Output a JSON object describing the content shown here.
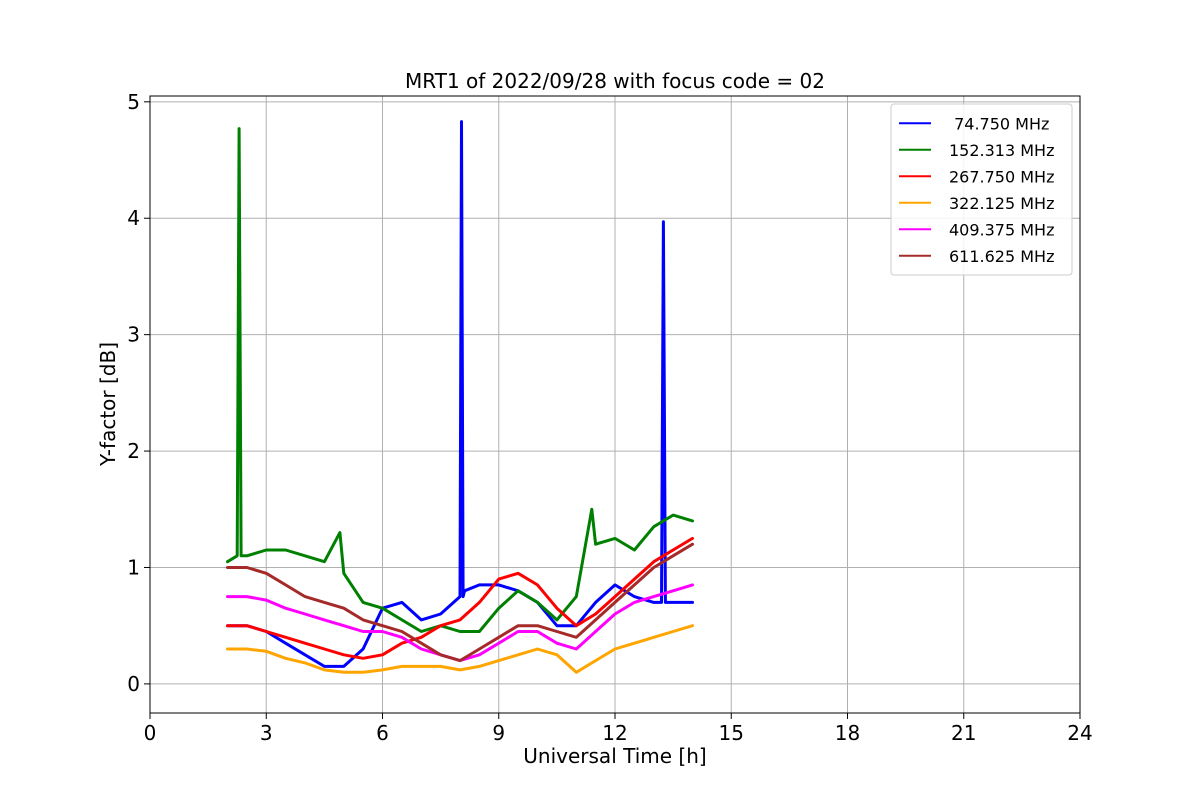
{
  "chart_data": {
    "type": "line",
    "title": "MRT1 of 2022/09/28 with focus code = 02",
    "xlabel": "Universal Time [h]",
    "ylabel": "Y-factor [dB]",
    "xlim": [
      0,
      24
    ],
    "ylim": [
      -0.25,
      5.05
    ],
    "xticks": [
      0,
      3,
      6,
      9,
      12,
      15,
      18,
      21,
      24
    ],
    "xtick_labels": [
      "0",
      "3",
      "6",
      "9",
      "12",
      "15",
      "18",
      "21",
      "24"
    ],
    "yticks": [
      0,
      1,
      2,
      3,
      4,
      5
    ],
    "ytick_labels": [
      "0",
      "1",
      "2",
      "3",
      "4",
      "5"
    ],
    "grid": true,
    "legend_position": "top-right",
    "series": [
      {
        "name": "74.750 MHz",
        "legend_label": " 74.750 MHz",
        "color": "#0000ff",
        "x": [
          2.0,
          2.5,
          3.0,
          3.5,
          4.0,
          4.5,
          5.0,
          5.5,
          6.0,
          6.5,
          7.0,
          7.5,
          8.0,
          8.04,
          8.08,
          8.12,
          8.5,
          9.0,
          9.5,
          10.0,
          10.5,
          11.0,
          11.5,
          12.0,
          12.5,
          13.0,
          13.2,
          13.25,
          13.3,
          13.5,
          14.0
        ],
        "y": [
          0.5,
          0.5,
          0.45,
          0.35,
          0.25,
          0.15,
          0.15,
          0.3,
          0.65,
          0.7,
          0.55,
          0.6,
          0.75,
          4.83,
          0.75,
          0.8,
          0.85,
          0.85,
          0.8,
          0.7,
          0.5,
          0.5,
          0.7,
          0.85,
          0.75,
          0.7,
          0.7,
          3.97,
          0.7,
          0.7,
          0.7
        ]
      },
      {
        "name": "152.313 MHz",
        "legend_label": "152.313 MHz",
        "color": "#008000",
        "x": [
          2.0,
          2.25,
          2.3,
          2.35,
          2.5,
          3.0,
          3.5,
          4.0,
          4.5,
          4.9,
          5.0,
          5.5,
          6.0,
          6.5,
          7.0,
          7.5,
          8.0,
          8.5,
          9.0,
          9.5,
          10.0,
          10.5,
          11.0,
          11.4,
          11.5,
          12.0,
          12.5,
          13.0,
          13.5,
          14.0
        ],
        "y": [
          1.05,
          1.1,
          4.77,
          1.1,
          1.1,
          1.15,
          1.15,
          1.1,
          1.05,
          1.3,
          0.95,
          0.7,
          0.65,
          0.55,
          0.45,
          0.5,
          0.45,
          0.45,
          0.65,
          0.8,
          0.7,
          0.55,
          0.75,
          1.5,
          1.2,
          1.25,
          1.15,
          1.35,
          1.45,
          1.4
        ]
      },
      {
        "name": "267.750 MHz",
        "legend_label": "267.750 MHz",
        "color": "#ff0000",
        "x": [
          2.0,
          2.5,
          3.0,
          3.5,
          4.0,
          4.5,
          5.0,
          5.5,
          6.0,
          6.5,
          7.0,
          7.5,
          8.0,
          8.5,
          9.0,
          9.5,
          10.0,
          10.5,
          11.0,
          11.5,
          12.0,
          12.5,
          13.0,
          13.5,
          14.0
        ],
        "y": [
          0.5,
          0.5,
          0.45,
          0.4,
          0.35,
          0.3,
          0.25,
          0.22,
          0.25,
          0.35,
          0.4,
          0.5,
          0.55,
          0.7,
          0.9,
          0.95,
          0.85,
          0.65,
          0.5,
          0.6,
          0.75,
          0.9,
          1.05,
          1.15,
          1.25
        ]
      },
      {
        "name": "322.125 MHz",
        "legend_label": "322.125 MHz",
        "color": "#ffa500",
        "x": [
          2.0,
          2.5,
          3.0,
          3.5,
          4.0,
          4.5,
          5.0,
          5.5,
          6.0,
          6.5,
          7.0,
          7.5,
          8.0,
          8.5,
          9.0,
          9.5,
          10.0,
          10.5,
          11.0,
          11.5,
          12.0,
          12.5,
          13.0,
          13.5,
          14.0
        ],
        "y": [
          0.3,
          0.3,
          0.28,
          0.22,
          0.18,
          0.12,
          0.1,
          0.1,
          0.12,
          0.15,
          0.15,
          0.15,
          0.12,
          0.15,
          0.2,
          0.25,
          0.3,
          0.25,
          0.1,
          0.2,
          0.3,
          0.35,
          0.4,
          0.45,
          0.5
        ]
      },
      {
        "name": "409.375 MHz",
        "legend_label": "409.375 MHz",
        "color": "#ff00ff",
        "x": [
          2.0,
          2.5,
          3.0,
          3.5,
          4.0,
          4.5,
          5.0,
          5.5,
          6.0,
          6.5,
          7.0,
          7.5,
          8.0,
          8.5,
          9.0,
          9.5,
          10.0,
          10.5,
          11.0,
          11.5,
          12.0,
          12.5,
          13.0,
          13.5,
          14.0
        ],
        "y": [
          0.75,
          0.75,
          0.72,
          0.65,
          0.6,
          0.55,
          0.5,
          0.45,
          0.45,
          0.4,
          0.3,
          0.25,
          0.2,
          0.25,
          0.35,
          0.45,
          0.45,
          0.35,
          0.3,
          0.45,
          0.6,
          0.7,
          0.75,
          0.8,
          0.85
        ]
      },
      {
        "name": "611.625 MHz",
        "legend_label": "611.625 MHz",
        "color": "#a52a2a",
        "x": [
          2.0,
          2.5,
          3.0,
          3.5,
          4.0,
          4.5,
          5.0,
          5.5,
          6.0,
          6.5,
          7.0,
          7.5,
          8.0,
          8.5,
          9.0,
          9.5,
          10.0,
          10.5,
          11.0,
          11.5,
          12.0,
          12.5,
          13.0,
          13.5,
          14.0
        ],
        "y": [
          1.0,
          1.0,
          0.95,
          0.85,
          0.75,
          0.7,
          0.65,
          0.55,
          0.5,
          0.45,
          0.35,
          0.25,
          0.2,
          0.3,
          0.4,
          0.5,
          0.5,
          0.45,
          0.4,
          0.55,
          0.7,
          0.85,
          1.0,
          1.1,
          1.2
        ]
      }
    ]
  }
}
